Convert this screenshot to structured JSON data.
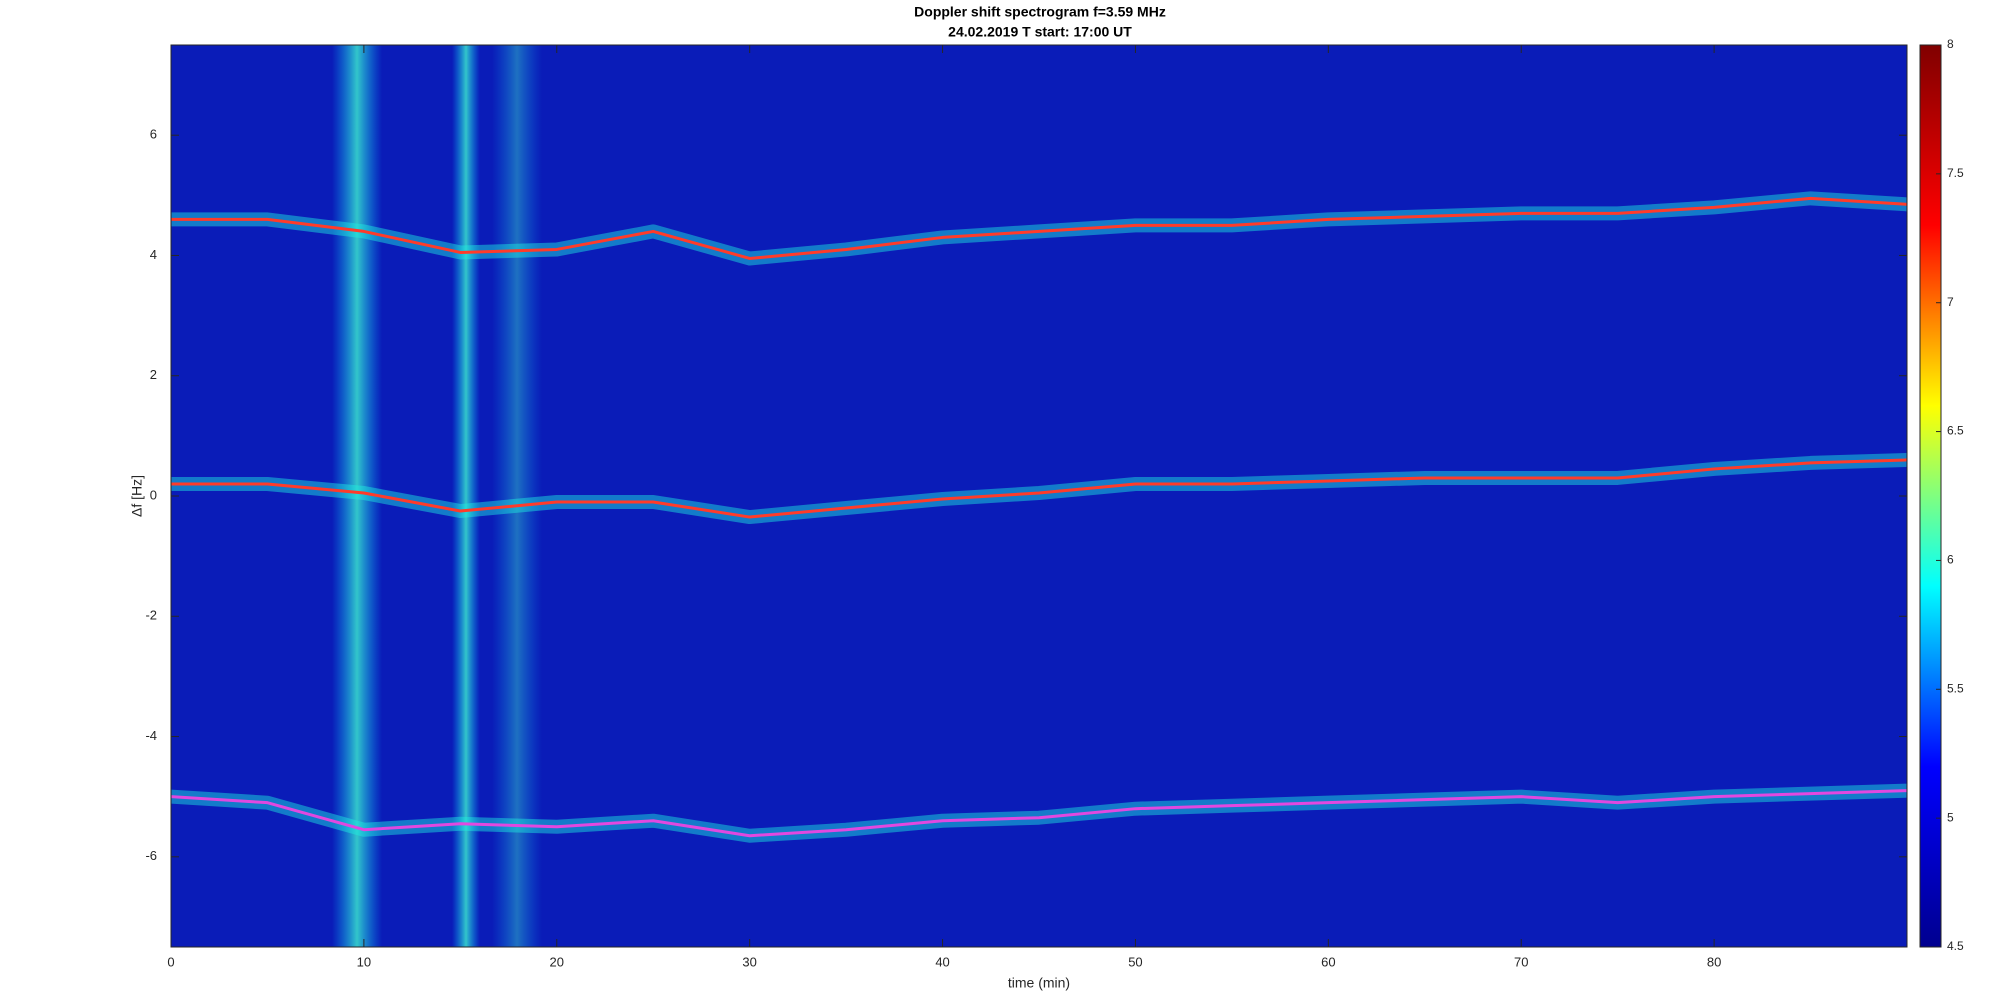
{
  "chart_data": {
    "type": "spectrogram",
    "title": "Doppler shift spectrogram f=3.59 MHz",
    "subtitle": "24.02.2019   T start: 17:00 UT",
    "x_label": "time (min)",
    "y_label": "Δf [Hz]",
    "xlim": [
      0,
      90
    ],
    "xticks": [
      0,
      10,
      20,
      30,
      40,
      50,
      60,
      70,
      80
    ],
    "ylim": [
      -7.5,
      7.5
    ],
    "yticks": [
      -6,
      -4,
      -2,
      0,
      2,
      4,
      6
    ],
    "plot_background": "#0a1cb8",
    "x": [
      0,
      5,
      10,
      15,
      20,
      25,
      30,
      35,
      40,
      45,
      50,
      55,
      60,
      65,
      70,
      75,
      80,
      85,
      90
    ],
    "series": [
      {
        "color": "#ff3b2a",
        "values": [
          4.6,
          4.6,
          4.4,
          4.05,
          4.1,
          4.4,
          3.95,
          4.1,
          4.3,
          4.4,
          4.5,
          4.5,
          4.6,
          4.65,
          4.7,
          4.7,
          4.8,
          4.95,
          4.85
        ]
      },
      {
        "color": "#ff3b2a",
        "values": [
          0.2,
          0.2,
          0.05,
          -0.25,
          -0.1,
          -0.1,
          -0.35,
          -0.2,
          -0.05,
          0.05,
          0.2,
          0.2,
          0.25,
          0.3,
          0.3,
          0.3,
          0.45,
          0.55,
          0.6
        ]
      },
      {
        "color": "#e048e0",
        "values": [
          -5.0,
          -5.1,
          -5.55,
          -5.45,
          -5.5,
          -5.4,
          -5.65,
          -5.55,
          -5.4,
          -5.35,
          -5.2,
          -5.15,
          -5.1,
          -5.05,
          -5.0,
          -5.1,
          -5.0,
          -4.95,
          -4.9
        ]
      }
    ],
    "colorbar": {
      "colormap": [
        "#00008f",
        "#0000ff",
        "#00ffff",
        "#ffff00",
        "#ff0000",
        "#800000"
      ],
      "lim": [
        4.5,
        8
      ],
      "ticks": [
        4.5,
        5,
        5.5,
        6,
        6.5,
        7,
        7.5,
        8
      ]
    }
  }
}
